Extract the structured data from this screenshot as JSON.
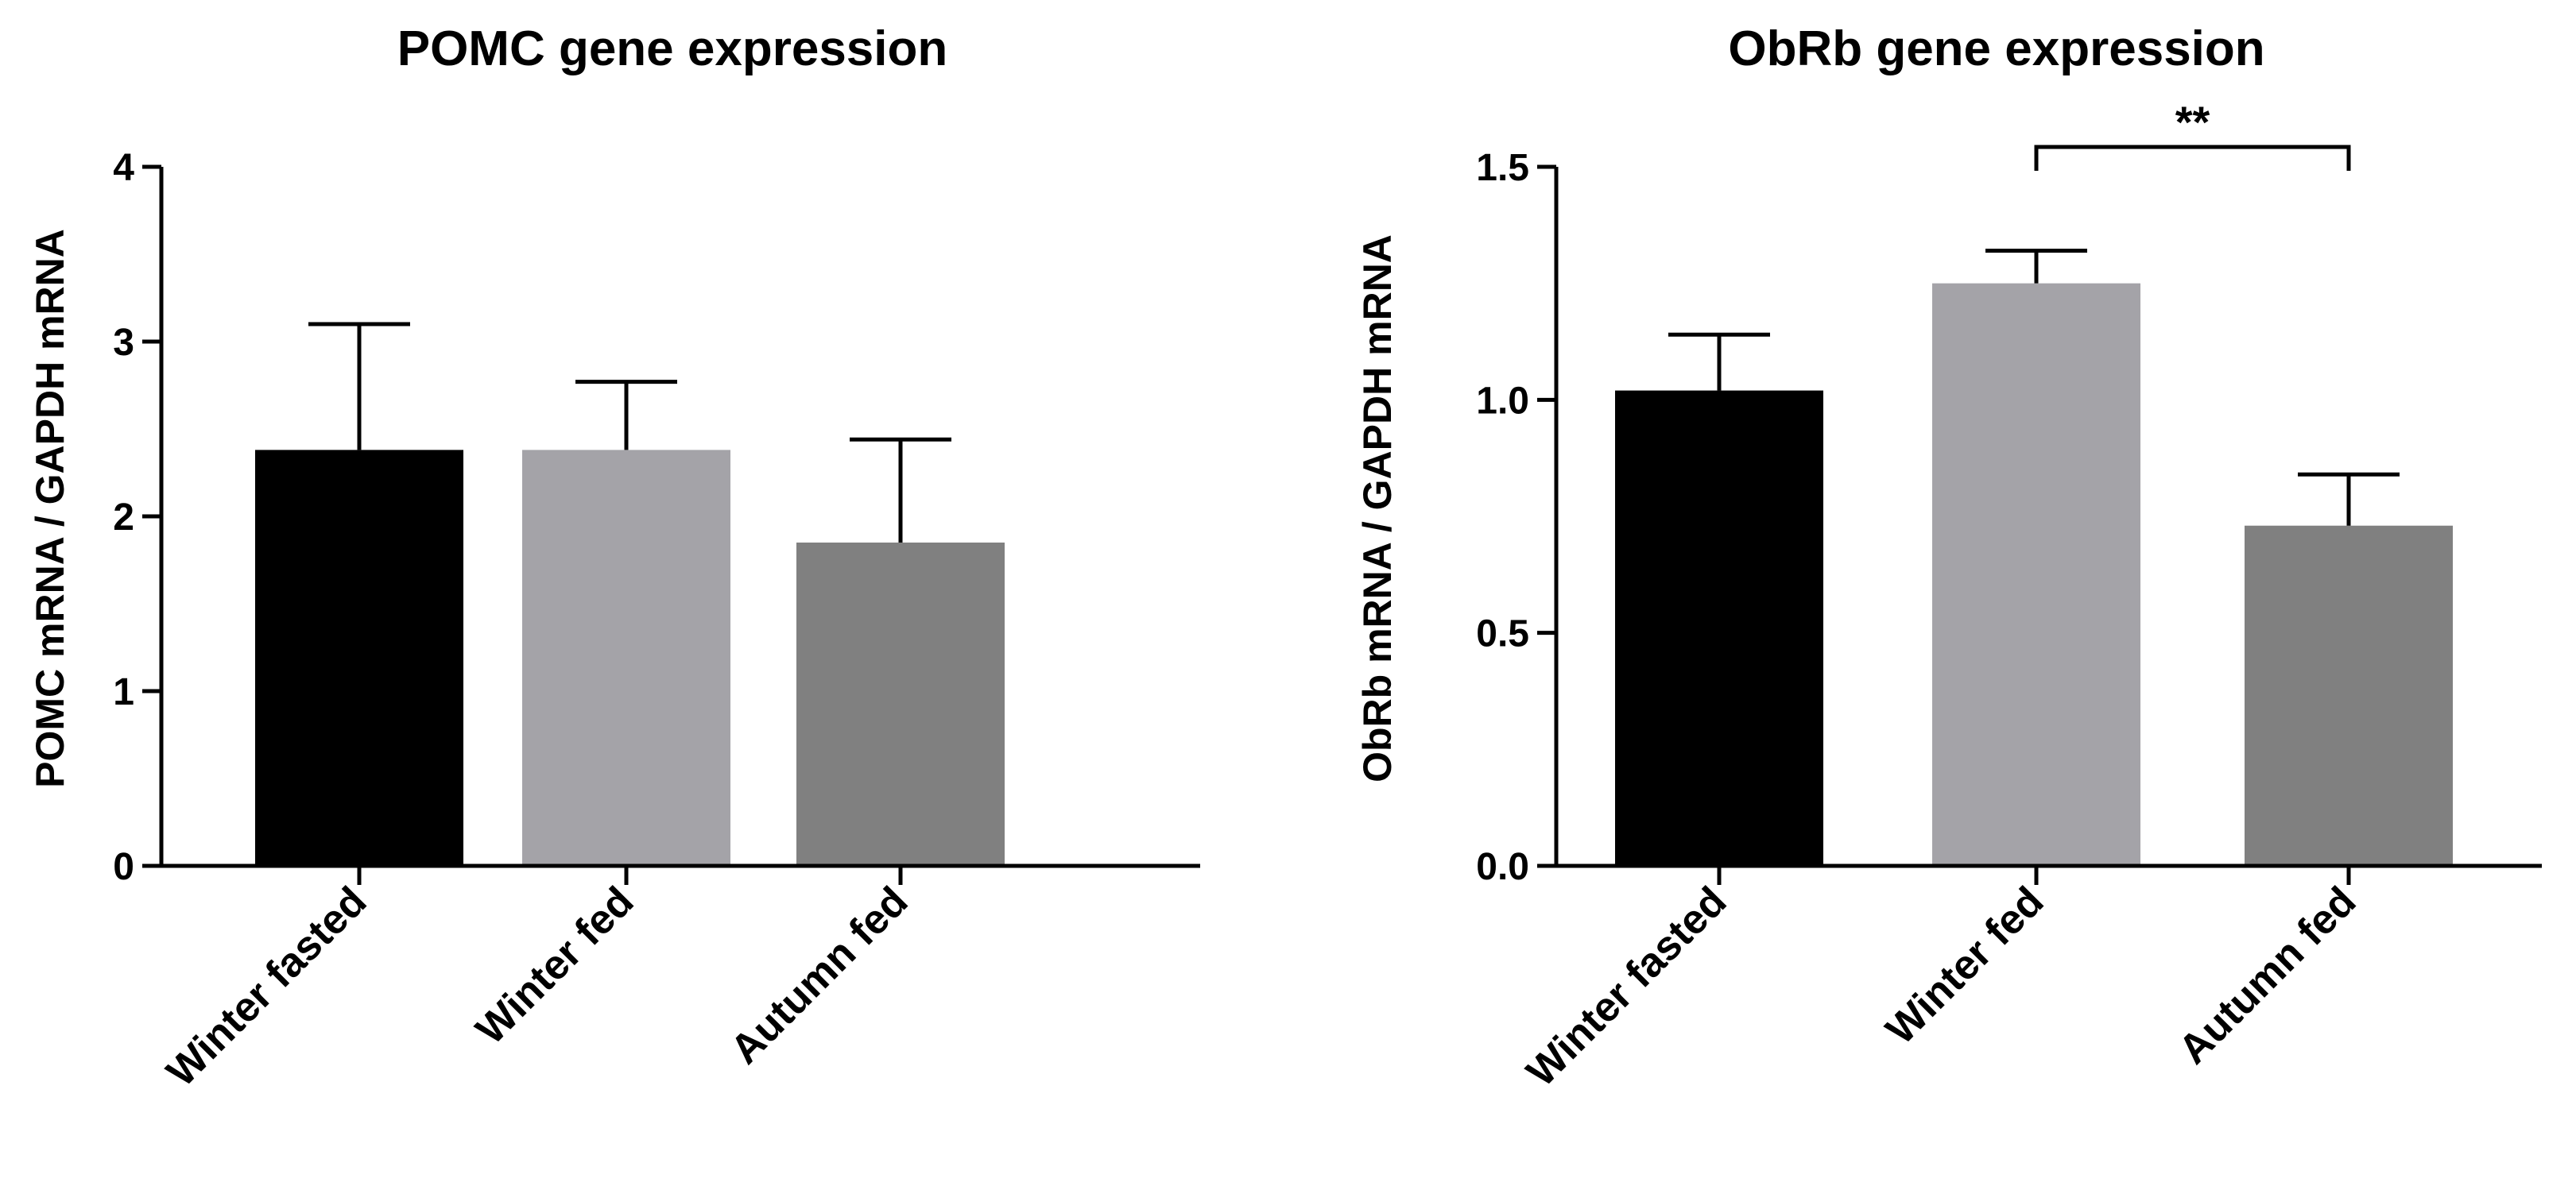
{
  "chart_data": [
    {
      "type": "bar",
      "title": "POMC gene expression",
      "xlabel": "",
      "ylabel": "POMC mRNA / GAPDH mRNA",
      "ylim": [
        0,
        4
      ],
      "yticks": [
        0,
        1,
        2,
        3,
        4
      ],
      "ytick_labels": [
        "0",
        "1",
        "2",
        "3",
        "4"
      ],
      "categories": [
        "Winter fasted",
        "Winter fed",
        "Autumn fed"
      ],
      "values": [
        2.38,
        2.38,
        1.85
      ],
      "errors": [
        0.72,
        0.39,
        0.59
      ],
      "colors": [
        "#000000",
        "#a4a3a8",
        "#808080"
      ],
      "annotations": []
    },
    {
      "type": "bar",
      "title": "ObRb gene expression",
      "xlabel": "",
      "ylabel": "ObRb mRNA / GAPDH mRNA",
      "ylim": [
        0,
        1.5
      ],
      "yticks": [
        0,
        0.5,
        1.0,
        1.5
      ],
      "ytick_labels": [
        "0.0",
        "0.5",
        "1.0",
        "1.5"
      ],
      "categories": [
        "Winter fasted",
        "Winter fed",
        "Autumn fed"
      ],
      "values": [
        1.02,
        1.25,
        0.73
      ],
      "errors": [
        0.12,
        0.07,
        0.11
      ],
      "colors": [
        "#000000",
        "#a4a3a8",
        "#808080"
      ],
      "annotations": [
        {
          "text": "**",
          "from": "Winter fed",
          "to": "Autumn fed",
          "y": 1.5
        }
      ]
    }
  ]
}
